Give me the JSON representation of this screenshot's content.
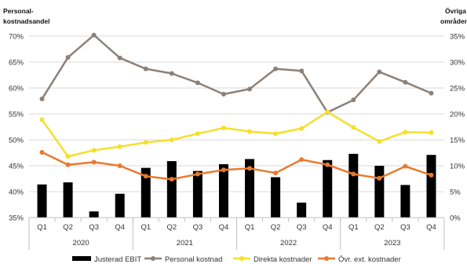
{
  "chart_data": {
    "type": "bar+line",
    "left_axis_title_line1": "Personal-",
    "left_axis_title_line2": "kostnadsandel",
    "right_axis_title_line1": "Övriga",
    "right_axis_title_line2": "områden",
    "left_ylim": [
      35,
      70
    ],
    "left_ticks": [
      "35%",
      "40%",
      "45%",
      "50%",
      "55%",
      "60%",
      "65%",
      "70%"
    ],
    "right_ylim": [
      0,
      35
    ],
    "right_ticks": [
      "0%",
      "5%",
      "10%",
      "15%",
      "20%",
      "25%",
      "30%",
      "35%"
    ],
    "quarters": [
      "Q1",
      "Q2",
      "Q3",
      "Q4",
      "Q1",
      "Q2",
      "Q3",
      "Q4",
      "Q1",
      "Q2",
      "Q3",
      "Q4",
      "Q1",
      "Q2",
      "Q3",
      "Q4"
    ],
    "years": [
      "2020",
      "2021",
      "2022",
      "2023"
    ],
    "grid": "horizontal",
    "legend_position": "bottom",
    "colors": {
      "bars": "#000000",
      "personal": "#8c8179",
      "direkta": "#f5e02c",
      "ovr": "#e87a30",
      "grid": "#d9d9d9",
      "axis": "#bfbfbf"
    },
    "series": [
      {
        "name": "Justerad EBIT",
        "kind": "bar",
        "axis": "right",
        "values": [
          6.4,
          6.8,
          1.2,
          4.6,
          9.6,
          10.9,
          9.0,
          10.3,
          11.3,
          7.8,
          2.9,
          11.1,
          12.3,
          10.0,
          6.3,
          12.1
        ]
      },
      {
        "name": "Personal kostnad",
        "kind": "line",
        "axis": "left",
        "marker": "circle",
        "values": [
          57.9,
          65.9,
          70.2,
          65.8,
          63.7,
          62.8,
          61.0,
          58.8,
          59.8,
          63.7,
          63.3,
          55.3,
          57.7,
          63.1,
          61.1,
          59.0
        ]
      },
      {
        "name": "Direkta kostnader",
        "kind": "line",
        "axis": "left",
        "marker": "circle",
        "values": [
          53.9,
          46.8,
          48.0,
          48.7,
          49.5,
          50.0,
          51.2,
          52.3,
          51.6,
          51.2,
          52.2,
          55.4,
          52.4,
          49.7,
          51.5,
          51.4
        ]
      },
      {
        "name": "Övr. ext. kostnader",
        "kind": "line",
        "axis": "left",
        "marker": "circle",
        "values": [
          47.6,
          45.2,
          45.7,
          45.0,
          43.0,
          42.4,
          43.4,
          44.2,
          44.5,
          43.6,
          46.2,
          45.2,
          43.4,
          42.6,
          44.9,
          43.2
        ]
      }
    ]
  }
}
